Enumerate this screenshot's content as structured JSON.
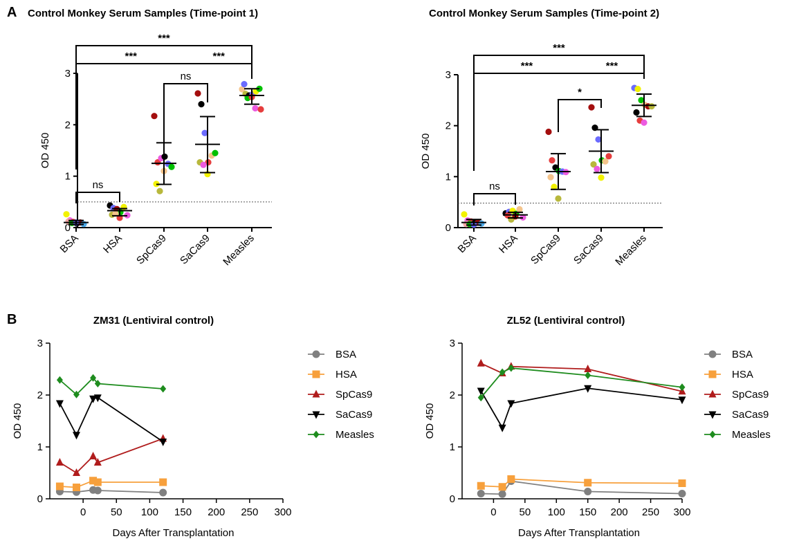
{
  "panel_letters": {
    "a": "A",
    "b": "B"
  },
  "chart_data": [
    {
      "type": "scatter",
      "title": "Control Monkey Serum Samples (Time-point 1)",
      "ylabel": "OD 450",
      "xlabel": "",
      "categories": [
        "BSA",
        "HSA",
        "SpCas9",
        "SaCas9",
        "Measles"
      ],
      "ylim": [
        0,
        3
      ],
      "yticks": [
        0,
        1,
        2,
        3
      ],
      "threshold": 0.5,
      "means": [
        0.1,
        0.33,
        1.25,
        1.62,
        2.57
      ],
      "sd_upper": [
        0.14,
        0.37,
        1.65,
        2.16,
        2.7
      ],
      "sd_lower": [
        0.06,
        0.23,
        0.84,
        1.07,
        2.4
      ],
      "points": [
        [
          0.26,
          0.14,
          0.11,
          0.08,
          0.1,
          0.07,
          0.12,
          0.09,
          0.1
        ],
        [
          0.43,
          0.38,
          0.36,
          0.3,
          0.4,
          0.24,
          0.25,
          0.27,
          0.19
        ],
        [
          2.17,
          1.27,
          1.35,
          1.38,
          1.24,
          1.18,
          0.85,
          0.71,
          1.1
        ],
        [
          2.61,
          2.4,
          1.84,
          1.27,
          1.4,
          1.45,
          1.27,
          1.22,
          1.04
        ],
        [
          2.69,
          2.6,
          2.57,
          2.59,
          2.65,
          2.7,
          2.79,
          2.52,
          2.54,
          2.32,
          2.3
        ]
      ],
      "point_colors": [
        [
          "#f2f200",
          "#ec5be0",
          "#e63d3d",
          "#000000",
          "#a40e0e",
          "#4aa8e8",
          "#f4a4a4",
          "#00c000",
          "#6b6bff"
        ],
        [
          "#000000",
          "#6b6bff",
          "#a40e0e",
          "#00c000",
          "#f2f200",
          "#ec5be0",
          "#b8b83c",
          "#f4c48c",
          "#e63d3d"
        ],
        [
          "#a40e0e",
          "#e63d3d",
          "#ec5be0",
          "#000000",
          "#6b6bff",
          "#00c000",
          "#f2f200",
          "#b8b83c",
          "#f4c48c"
        ],
        [
          "#a40e0e",
          "#000000",
          "#6b6bff",
          "#e63d3d",
          "#f4c48c",
          "#00c000",
          "#b8b83c",
          "#ec5be0",
          "#f2f200"
        ],
        [
          "#f4c48c",
          "#b8b83c",
          "#000000",
          "#6b6bff",
          "#f2f200",
          "#00c000",
          "#6b6bff",
          "#00c000",
          "#e63d3d",
          "#ec5be0",
          "#e63d3d"
        ]
      ],
      "comparisons": [
        {
          "from": 0,
          "to": 4,
          "label": "***"
        },
        {
          "from": 0,
          "to": 2.5,
          "label": "***"
        },
        {
          "from": 2.5,
          "to": 4,
          "label": "***"
        },
        {
          "from": 2,
          "to": 3,
          "label": "ns"
        },
        {
          "from": 0,
          "to": 1,
          "label": "ns"
        }
      ]
    },
    {
      "type": "scatter",
      "title": "Control Monkey Serum Samples (Time-point 2)",
      "ylabel": "OD 450",
      "xlabel": "",
      "categories": [
        "BSA",
        "HSA",
        "SpCas9",
        "SaCas9",
        "Measles"
      ],
      "ylim": [
        0,
        3
      ],
      "yticks": [
        0,
        1,
        2,
        3
      ],
      "threshold": 0.48,
      "means": [
        0.1,
        0.25,
        1.1,
        1.5,
        2.4
      ],
      "sd_upper": [
        0.16,
        0.3,
        1.45,
        1.92,
        2.62
      ],
      "sd_lower": [
        0.05,
        0.19,
        0.75,
        1.08,
        2.18
      ],
      "points": [
        [
          0.26,
          0.14,
          0.12,
          0.09,
          0.1,
          0.08,
          0.07,
          0.07,
          0.06
        ],
        [
          0.28,
          0.31,
          0.33,
          0.27,
          0.36,
          0.2,
          0.24,
          0.16,
          0.22
        ],
        [
          1.88,
          1.32,
          1.18,
          1.11,
          1.1,
          1.09,
          0.99,
          0.8,
          0.57
        ],
        [
          2.36,
          1.96,
          1.73,
          1.32,
          1.3,
          1.4,
          1.24,
          1.15,
          0.98
        ],
        [
          2.74,
          2.72,
          2.5,
          2.41,
          2.38,
          2.38,
          2.26,
          2.1,
          2.06
        ]
      ],
      "point_colors": [
        [
          "#f2f200",
          "#ec5be0",
          "#e63d3d",
          "#000000",
          "#a40e0e",
          "#4aa8e8",
          "#f4a4a4",
          "#00c000",
          "#6b6bff"
        ],
        [
          "#000000",
          "#6b6bff",
          "#f2f200",
          "#00c000",
          "#f4c48c",
          "#ec5be0",
          "#e63d3d",
          "#b8b83c",
          "#a40e0e"
        ],
        [
          "#a40e0e",
          "#e63d3d",
          "#000000",
          "#00c000",
          "#6b6bff",
          "#ec5be0",
          "#f4c48c",
          "#f2f200",
          "#b8b83c"
        ],
        [
          "#a40e0e",
          "#000000",
          "#6b6bff",
          "#00c000",
          "#f4c48c",
          "#e63d3d",
          "#b8b83c",
          "#ec5be0",
          "#f2f200"
        ],
        [
          "#6b6bff",
          "#f2f200",
          "#00c000",
          "#f4c48c",
          "#a40e0e",
          "#b8b83c",
          "#000000",
          "#e63d3d",
          "#ec5be0"
        ]
      ],
      "comparisons": [
        {
          "from": 0,
          "to": 4,
          "label": "***"
        },
        {
          "from": 0,
          "to": 2.5,
          "label": "***"
        },
        {
          "from": 2.5,
          "to": 4,
          "label": "***"
        },
        {
          "from": 2,
          "to": 3,
          "label": "*"
        },
        {
          "from": 0,
          "to": 1,
          "label": "ns"
        }
      ]
    },
    {
      "type": "line",
      "title": "ZM31 (Lentiviral control)",
      "xlabel": "Days After Transplantation",
      "ylabel": "OD 450",
      "xlim": [
        -50,
        300
      ],
      "xticks": [
        0,
        50,
        100,
        150,
        200,
        250,
        300
      ],
      "ylim": [
        0,
        3
      ],
      "yticks": [
        0,
        1,
        2,
        3
      ],
      "legend_position": "right",
      "series": [
        {
          "name": "BSA",
          "color": "#808080",
          "marker": "circle",
          "x": [
            -35,
            -10,
            15,
            22,
            120
          ],
          "y": [
            0.14,
            0.13,
            0.17,
            0.16,
            0.12
          ]
        },
        {
          "name": "HSA",
          "color": "#f7a03c",
          "marker": "square",
          "x": [
            -35,
            -10,
            15,
            22,
            120
          ],
          "y": [
            0.24,
            0.22,
            0.35,
            0.32,
            0.32
          ]
        },
        {
          "name": "SpCas9",
          "color": "#b01c1c",
          "marker": "triangle-up",
          "x": [
            -35,
            -10,
            15,
            22,
            120
          ],
          "y": [
            0.7,
            0.5,
            0.82,
            0.7,
            1.16
          ]
        },
        {
          "name": "SaCas9",
          "color": "#000000",
          "marker": "triangle-down",
          "x": [
            -35,
            -10,
            15,
            22,
            120
          ],
          "y": [
            1.84,
            1.23,
            1.93,
            1.95,
            1.1
          ]
        },
        {
          "name": "Measles",
          "color": "#1e8c1e",
          "marker": "diamond",
          "x": [
            -35,
            -10,
            15,
            22,
            120
          ],
          "y": [
            2.29,
            2.01,
            2.33,
            2.22,
            2.12
          ]
        }
      ]
    },
    {
      "type": "line",
      "title": "ZL52 (Lentiviral control)",
      "xlabel": "Days After Transplantation",
      "ylabel": "OD 450",
      "xlim": [
        -50,
        300
      ],
      "xticks": [
        0,
        50,
        100,
        150,
        200,
        250,
        300
      ],
      "ylim": [
        0,
        3
      ],
      "yticks": [
        0,
        1,
        2,
        3
      ],
      "legend_position": "right",
      "series": [
        {
          "name": "BSA",
          "color": "#808080",
          "marker": "circle",
          "x": [
            -20,
            14,
            28,
            150,
            300
          ],
          "y": [
            0.1,
            0.09,
            0.34,
            0.14,
            0.1
          ]
        },
        {
          "name": "HSA",
          "color": "#f7a03c",
          "marker": "square",
          "x": [
            -20,
            14,
            28,
            150,
            300
          ],
          "y": [
            0.25,
            0.23,
            0.38,
            0.31,
            0.3
          ]
        },
        {
          "name": "SpCas9",
          "color": "#b01c1c",
          "marker": "triangle-up",
          "x": [
            -20,
            14,
            28,
            150,
            300
          ],
          "y": [
            2.61,
            2.42,
            2.55,
            2.5,
            2.07
          ]
        },
        {
          "name": "SaCas9",
          "color": "#000000",
          "marker": "triangle-down",
          "x": [
            -20,
            14,
            28,
            150,
            300
          ],
          "y": [
            2.08,
            1.37,
            1.84,
            2.13,
            1.91
          ]
        },
        {
          "name": "Measles",
          "color": "#1e8c1e",
          "marker": "diamond",
          "x": [
            -20,
            14,
            28,
            150,
            300
          ],
          "y": [
            1.95,
            2.44,
            2.52,
            2.38,
            2.15
          ]
        }
      ]
    }
  ]
}
